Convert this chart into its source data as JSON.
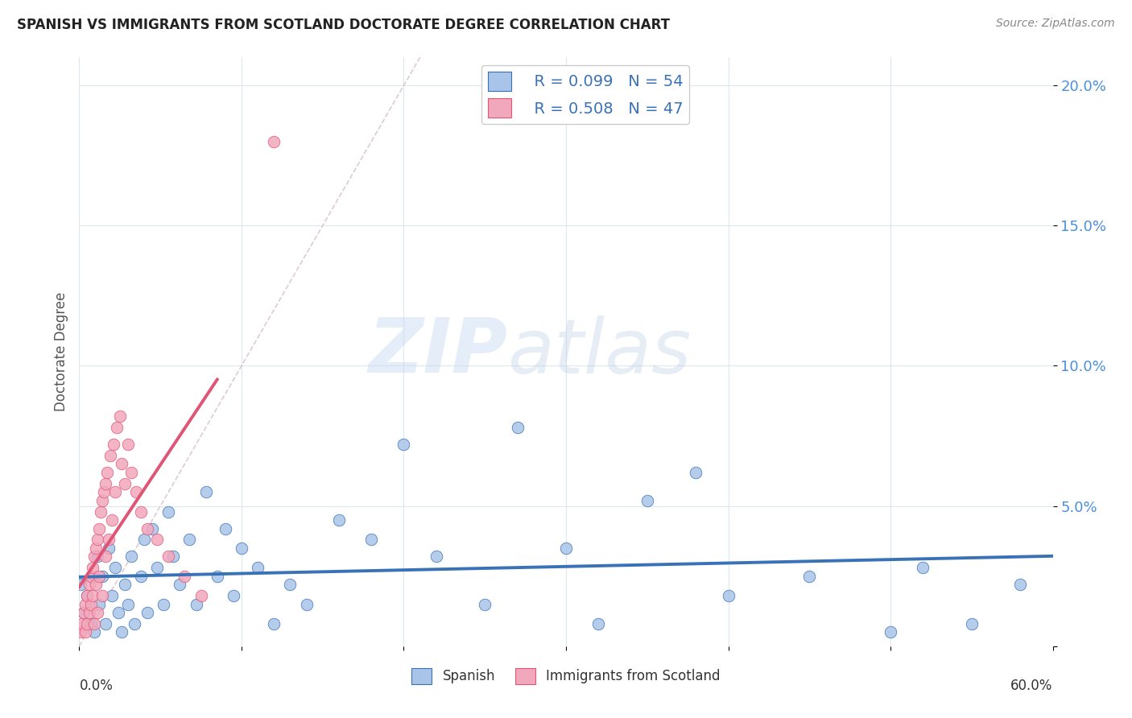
{
  "title": "SPANISH VS IMMIGRANTS FROM SCOTLAND DOCTORATE DEGREE CORRELATION CHART",
  "source": "Source: ZipAtlas.com",
  "ylabel": "Doctorate Degree",
  "xlim": [
    0.0,
    0.6
  ],
  "ylim": [
    0.0,
    0.21
  ],
  "yticks": [
    0.0,
    0.05,
    0.1,
    0.15,
    0.2
  ],
  "ytick_labels": [
    "",
    "5.0%",
    "10.0%",
    "15.0%",
    "20.0%"
  ],
  "legend_blue_r": "R = 0.099",
  "legend_blue_n": "N = 54",
  "legend_pink_r": "R = 0.508",
  "legend_pink_n": "N = 47",
  "blue_color": "#a8c4e8",
  "pink_color": "#f2a8bc",
  "blue_line_color": "#3a72b8",
  "pink_line_color": "#e05575",
  "blue_scatter_x": [
    0.001,
    0.003,
    0.005,
    0.007,
    0.009,
    0.011,
    0.012,
    0.014,
    0.016,
    0.018,
    0.02,
    0.022,
    0.024,
    0.026,
    0.028,
    0.03,
    0.032,
    0.034,
    0.038,
    0.04,
    0.042,
    0.045,
    0.048,
    0.052,
    0.055,
    0.058,
    0.062,
    0.068,
    0.072,
    0.078,
    0.085,
    0.09,
    0.095,
    0.1,
    0.11,
    0.12,
    0.13,
    0.14,
    0.16,
    0.18,
    0.2,
    0.22,
    0.25,
    0.27,
    0.3,
    0.32,
    0.35,
    0.38,
    0.4,
    0.45,
    0.5,
    0.52,
    0.55,
    0.58
  ],
  "blue_scatter_y": [
    0.022,
    0.012,
    0.018,
    0.008,
    0.005,
    0.032,
    0.015,
    0.025,
    0.008,
    0.035,
    0.018,
    0.028,
    0.012,
    0.005,
    0.022,
    0.015,
    0.032,
    0.008,
    0.025,
    0.038,
    0.012,
    0.042,
    0.028,
    0.015,
    0.048,
    0.032,
    0.022,
    0.038,
    0.015,
    0.055,
    0.025,
    0.042,
    0.018,
    0.035,
    0.028,
    0.008,
    0.022,
    0.015,
    0.045,
    0.038,
    0.072,
    0.032,
    0.015,
    0.078,
    0.035,
    0.008,
    0.052,
    0.062,
    0.018,
    0.025,
    0.005,
    0.028,
    0.008,
    0.022
  ],
  "pink_scatter_x": [
    0.001,
    0.002,
    0.003,
    0.004,
    0.004,
    0.005,
    0.005,
    0.006,
    0.006,
    0.007,
    0.007,
    0.008,
    0.008,
    0.009,
    0.009,
    0.01,
    0.01,
    0.011,
    0.011,
    0.012,
    0.012,
    0.013,
    0.014,
    0.014,
    0.015,
    0.016,
    0.016,
    0.017,
    0.018,
    0.019,
    0.02,
    0.021,
    0.022,
    0.023,
    0.025,
    0.026,
    0.028,
    0.03,
    0.032,
    0.035,
    0.038,
    0.042,
    0.048,
    0.055,
    0.065,
    0.075,
    0.12
  ],
  "pink_scatter_y": [
    0.005,
    0.008,
    0.012,
    0.015,
    0.005,
    0.018,
    0.008,
    0.022,
    0.012,
    0.025,
    0.015,
    0.028,
    0.018,
    0.032,
    0.008,
    0.035,
    0.022,
    0.038,
    0.012,
    0.042,
    0.025,
    0.048,
    0.052,
    0.018,
    0.055,
    0.058,
    0.032,
    0.062,
    0.038,
    0.068,
    0.045,
    0.072,
    0.055,
    0.078,
    0.082,
    0.065,
    0.058,
    0.072,
    0.062,
    0.055,
    0.048,
    0.042,
    0.038,
    0.032,
    0.025,
    0.018,
    0.18
  ],
  "diag_line_x": [
    0.0,
    0.21
  ],
  "diag_line_y": [
    0.0,
    0.21
  ],
  "watermark_zip": "ZIP",
  "watermark_atlas": "atlas",
  "background_color": "#ffffff",
  "grid_color": "#dce8f0"
}
